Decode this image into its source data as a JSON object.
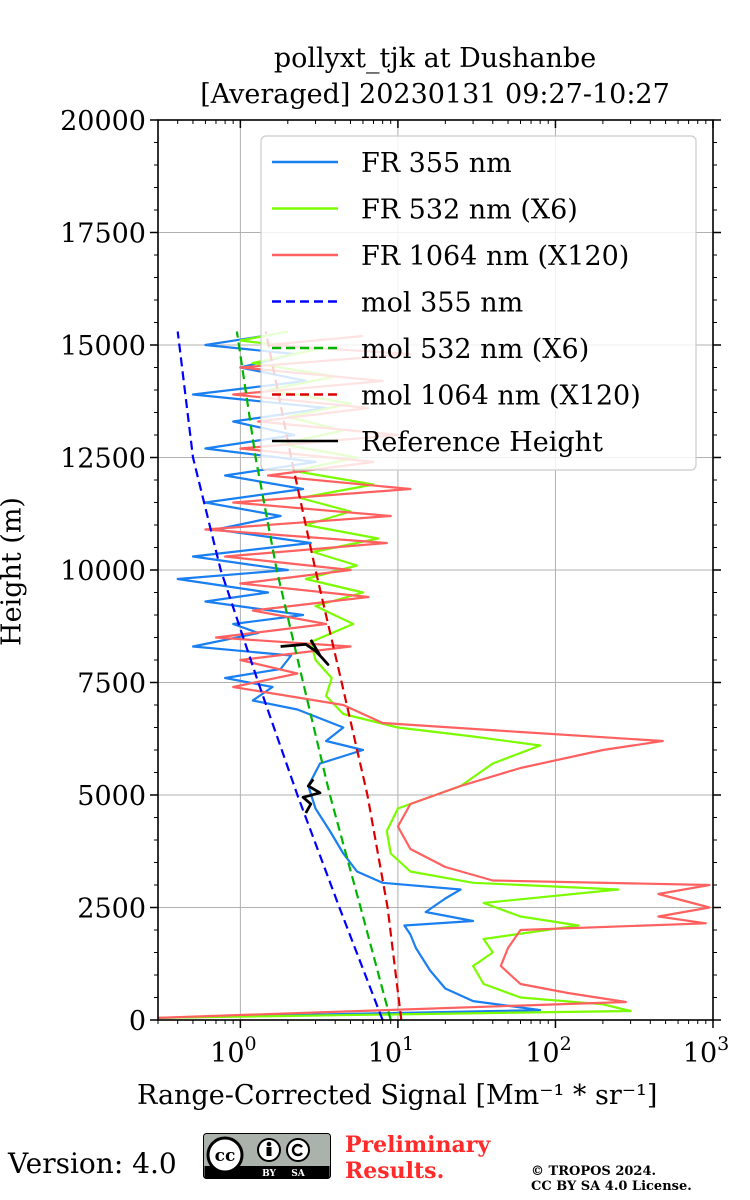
{
  "title": {
    "line1": "pollyxt_tjk at Dushanbe",
    "line2": "[Averaged] 20230131 09:27-10:27"
  },
  "footer": {
    "version": "Version: 4.0",
    "license_badge": {
      "icon": "cc-by-sa-icon",
      "by": "BY",
      "sa": "SA",
      "cc": "cc"
    },
    "preliminary_line1": "Preliminary",
    "preliminary_line2": "Results.",
    "copyright_line1": "© TROPOS 2024.",
    "copyright_line2": "CC BY SA 4.0 License."
  },
  "chart_data": {
    "type": "line",
    "title": "pollyxt_tjk at Dushanbe [Averaged] 20230131 09:27-10:27",
    "xlabel": "Range-Corrected Signal [Mm⁻¹ * sr⁻¹]",
    "ylabel": "Height (m)",
    "xscale": "log",
    "xlim": [
      0.3,
      1000
    ],
    "ylim": [
      0,
      20000
    ],
    "x_ticks": [
      {
        "value": 1,
        "base": "10",
        "exp": "0"
      },
      {
        "value": 10,
        "base": "10",
        "exp": "1"
      },
      {
        "value": 100,
        "base": "10",
        "exp": "2"
      },
      {
        "value": 1000,
        "base": "10",
        "exp": "3"
      }
    ],
    "y_ticks": [
      0,
      2500,
      5000,
      7500,
      10000,
      12500,
      15000,
      17500,
      20000
    ],
    "y_tick_labels": [
      "0",
      "2500",
      "5000",
      "7500",
      "10000",
      "12500",
      "15000",
      "17500",
      "20000"
    ],
    "grid": true,
    "legend_position": "top-right",
    "series": [
      {
        "name": "FR 355 nm",
        "color": "#1a7ff0",
        "style": "solid",
        "points": [
          [
            0.3,
            50
          ],
          [
            80,
            220
          ],
          [
            30,
            420
          ],
          [
            20,
            700
          ],
          [
            16,
            1100
          ],
          [
            13,
            1600
          ],
          [
            12,
            1900
          ],
          [
            11,
            2100
          ],
          [
            30,
            2200
          ],
          [
            15,
            2400
          ],
          [
            20,
            2700
          ],
          [
            25,
            2900
          ],
          [
            8,
            3050
          ],
          [
            5.5,
            3300
          ],
          [
            4.5,
            3700
          ],
          [
            3.7,
            4200
          ],
          [
            3.0,
            4700
          ],
          [
            2.7,
            5200
          ],
          [
            3.2,
            5700
          ],
          [
            6,
            6000
          ],
          [
            3.5,
            6200
          ],
          [
            4.5,
            6500
          ],
          [
            2.3,
            6900
          ],
          [
            1.2,
            7100
          ],
          [
            1.6,
            7400
          ],
          [
            0.8,
            7600
          ],
          [
            1.8,
            7800
          ],
          [
            2.1,
            8100
          ],
          [
            0.5,
            8300
          ],
          [
            1.3,
            8600
          ],
          [
            0.9,
            8800
          ],
          [
            2.5,
            9000
          ],
          [
            0.6,
            9300
          ],
          [
            1.5,
            9500
          ],
          [
            0.4,
            9800
          ],
          [
            2.0,
            10000
          ],
          [
            0.5,
            10300
          ],
          [
            2.8,
            10600
          ],
          [
            0.7,
            10900
          ],
          [
            1.8,
            11200
          ],
          [
            0.6,
            11500
          ],
          [
            2.5,
            11800
          ],
          [
            0.8,
            12100
          ],
          [
            3.0,
            12400
          ],
          [
            0.6,
            12700
          ],
          [
            2.2,
            13000
          ],
          [
            0.9,
            13300
          ],
          [
            3.5,
            13600
          ],
          [
            0.5,
            13900
          ],
          [
            2.6,
            14200
          ],
          [
            1.0,
            14500
          ],
          [
            2.2,
            14800
          ],
          [
            0.6,
            15000
          ],
          [
            1.4,
            15200
          ]
        ]
      },
      {
        "name": "FR 532 nm (X6)",
        "color": "#7cfc00",
        "style": "solid",
        "points": [
          [
            0.3,
            50
          ],
          [
            300,
            200
          ],
          [
            200,
            350
          ],
          [
            60,
            500
          ],
          [
            35,
            800
          ],
          [
            30,
            1200
          ],
          [
            40,
            1500
          ],
          [
            35,
            1800
          ],
          [
            140,
            2100
          ],
          [
            60,
            2300
          ],
          [
            35,
            2600
          ],
          [
            250,
            2900
          ],
          [
            30,
            3050
          ],
          [
            12,
            3300
          ],
          [
            9,
            3700
          ],
          [
            8.5,
            4200
          ],
          [
            10,
            4700
          ],
          [
            25,
            5200
          ],
          [
            40,
            5700
          ],
          [
            80,
            6100
          ],
          [
            30,
            6300
          ],
          [
            10,
            6500
          ],
          [
            4.5,
            6800
          ],
          [
            3.5,
            7200
          ],
          [
            3.8,
            7600
          ],
          [
            3.0,
            8000
          ],
          [
            2.8,
            8400
          ],
          [
            5.2,
            8800
          ],
          [
            3.0,
            9200
          ],
          [
            6.0,
            9500
          ],
          [
            2.6,
            9800
          ],
          [
            5.5,
            10100
          ],
          [
            2.9,
            10400
          ],
          [
            7.5,
            10700
          ],
          [
            2.6,
            11000
          ],
          [
            5.0,
            11300
          ],
          [
            2.4,
            11600
          ],
          [
            7.0,
            11900
          ],
          [
            2.2,
            12200
          ],
          [
            5.5,
            12500
          ],
          [
            1.8,
            12800
          ],
          [
            4.5,
            13100
          ],
          [
            2.0,
            13400
          ],
          [
            5.0,
            13700
          ],
          [
            1.5,
            14000
          ],
          [
            4.0,
            14300
          ],
          [
            1.2,
            14600
          ],
          [
            3.0,
            14900
          ],
          [
            1.0,
            15100
          ],
          [
            2.0,
            15300
          ]
        ]
      },
      {
        "name": "FR 1064 nm (X120)",
        "color": "#ff6060",
        "style": "solid",
        "points": [
          [
            0.3,
            50
          ],
          [
            280,
            400
          ],
          [
            120,
            600
          ],
          [
            60,
            800
          ],
          [
            45,
            1200
          ],
          [
            50,
            1600
          ],
          [
            60,
            2000
          ],
          [
            900,
            2150
          ],
          [
            450,
            2300
          ],
          [
            950,
            2500
          ],
          [
            450,
            2800
          ],
          [
            950,
            3000
          ],
          [
            40,
            3100
          ],
          [
            20,
            3400
          ],
          [
            12,
            3800
          ],
          [
            10,
            4300
          ],
          [
            12,
            4800
          ],
          [
            25,
            5200
          ],
          [
            60,
            5600
          ],
          [
            200,
            6000
          ],
          [
            480,
            6200
          ],
          [
            60,
            6400
          ],
          [
            8,
            6600
          ],
          [
            4.5,
            7000
          ],
          [
            0.9,
            7400
          ],
          [
            2.3,
            7700
          ],
          [
            1.0,
            8000
          ],
          [
            5.0,
            8300
          ],
          [
            0.7,
            8500
          ],
          [
            3.5,
            8800
          ],
          [
            1.2,
            9100
          ],
          [
            6.5,
            9400
          ],
          [
            1.0,
            9700
          ],
          [
            5.0,
            10000
          ],
          [
            0.8,
            10300
          ],
          [
            8.5,
            10600
          ],
          [
            0.6,
            10900
          ],
          [
            9.0,
            11200
          ],
          [
            0.9,
            11500
          ],
          [
            12.0,
            11800
          ],
          [
            1.5,
            12100
          ],
          [
            7.0,
            12400
          ],
          [
            1.0,
            12700
          ],
          [
            10.0,
            13000
          ],
          [
            1.3,
            13300
          ],
          [
            6.5,
            13600
          ],
          [
            0.9,
            13900
          ],
          [
            8.0,
            14200
          ],
          [
            1.0,
            14500
          ],
          [
            12.0,
            14800
          ],
          [
            1.5,
            15000
          ],
          [
            6.0,
            15200
          ]
        ]
      },
      {
        "name": "mol 355 nm",
        "color": "#0000ff",
        "style": "dashed",
        "points": [
          [
            8.0,
            0
          ],
          [
            4.25,
            2500
          ],
          [
            2.3,
            5000
          ],
          [
            1.3,
            7500
          ],
          [
            0.75,
            10000
          ],
          [
            0.5,
            12500
          ],
          [
            0.4,
            15300
          ]
        ]
      },
      {
        "name": "mol 532 nm (X6)",
        "color": "#00b400",
        "style": "dashed",
        "points": [
          [
            9.0,
            0
          ],
          [
            5.8,
            2500
          ],
          [
            3.7,
            5000
          ],
          [
            2.5,
            7500
          ],
          [
            1.7,
            10000
          ],
          [
            1.25,
            12500
          ],
          [
            0.95,
            15300
          ]
        ]
      },
      {
        "name": "mol 1064 nm (X120)",
        "color": "#dd0000",
        "style": "dashed",
        "points": [
          [
            10.5,
            0
          ],
          [
            8.6,
            2500
          ],
          [
            6.4,
            5000
          ],
          [
            4.4,
            7500
          ],
          [
            3.0,
            10000
          ],
          [
            2.1,
            12500
          ],
          [
            1.45,
            15300
          ]
        ]
      },
      {
        "name": "Reference Height",
        "color": "#000000",
        "style": "solid",
        "segments": [
          [
            [
              2.6,
              4600
            ],
            [
              2.8,
              4800
            ],
            [
              2.5,
              4950
            ],
            [
              3.2,
              5050
            ],
            [
              2.7,
              5200
            ],
            [
              2.9,
              5350
            ]
          ],
          [
            [
              1.8,
              8300
            ],
            [
              2.6,
              8350
            ],
            [
              3.0,
              8200
            ],
            [
              3.3,
              8050
            ],
            [
              3.6,
              7900
            ],
            [
              3.2,
              8100
            ],
            [
              2.8,
              8450
            ]
          ]
        ]
      }
    ]
  }
}
